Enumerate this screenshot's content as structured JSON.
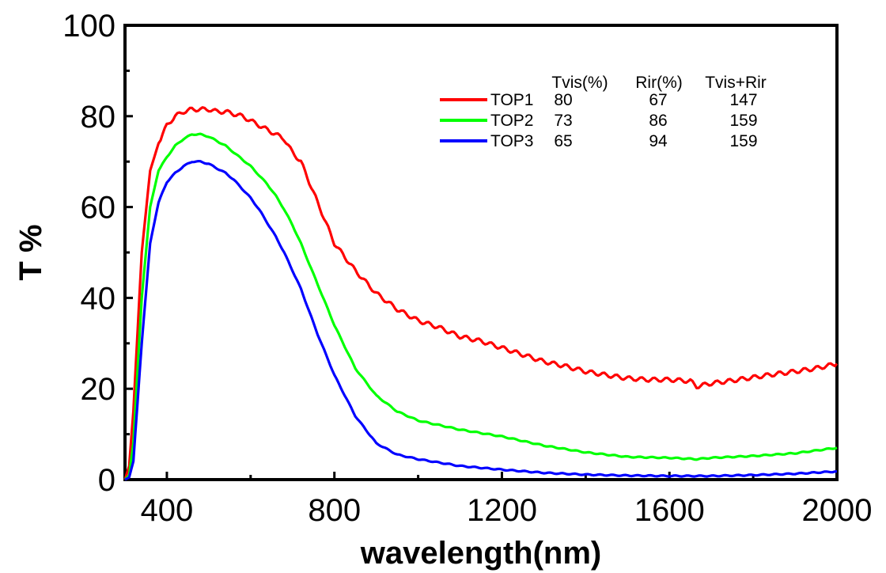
{
  "chart_data": {
    "type": "line",
    "xlabel": "wavelength(nm)",
    "ylabel": "T %",
    "xlim": [
      300,
      2000
    ],
    "ylim": [
      0,
      100
    ],
    "xticks": [
      400,
      800,
      1200,
      1600,
      2000
    ],
    "yticks": [
      0,
      20,
      40,
      60,
      80,
      100
    ],
    "grid": false,
    "legend_position": "top-right",
    "legend_columns": [
      "Tvis(%)",
      "Rir(%)",
      "Tvis+Rir"
    ],
    "series": [
      {
        "name": "TOP1",
        "color": "#ff0000",
        "table": [
          "80",
          "67",
          "147"
        ],
        "x": [
          300,
          310,
          320,
          340,
          360,
          380,
          400,
          420,
          440,
          460,
          480,
          500,
          520,
          540,
          560,
          580,
          600,
          620,
          640,
          660,
          680,
          700,
          720,
          760,
          800,
          850,
          900,
          950,
          1000,
          1050,
          1100,
          1150,
          1200,
          1250,
          1300,
          1350,
          1400,
          1450,
          1500,
          1550,
          1600,
          1650,
          1665,
          1700,
          1750,
          1800,
          1850,
          1900,
          1950,
          2000
        ],
        "y": [
          0,
          3,
          15,
          50,
          68,
          74,
          78,
          80,
          81,
          81.5,
          81.5,
          81.5,
          81,
          81,
          80.5,
          80,
          79,
          78,
          77,
          76,
          75,
          72,
          70,
          61,
          52,
          46,
          41,
          37.5,
          35,
          33.5,
          31.5,
          30.5,
          29,
          27.5,
          26,
          25,
          23.8,
          23,
          22.3,
          22,
          22,
          21.7,
          20.5,
          21.2,
          21.8,
          22.5,
          23.2,
          23.8,
          24.5,
          25.5
        ]
      },
      {
        "name": "TOP2",
        "color": "#00ff00",
        "table": [
          "73",
          "86",
          "159"
        ],
        "x": [
          300,
          310,
          320,
          340,
          360,
          380,
          400,
          420,
          440,
          460,
          480,
          500,
          520,
          540,
          560,
          580,
          600,
          620,
          640,
          660,
          680,
          700,
          720,
          760,
          800,
          850,
          900,
          950,
          1000,
          1100,
          1200,
          1300,
          1400,
          1500,
          1600,
          1665,
          1700,
          1800,
          1900,
          2000
        ],
        "y": [
          0,
          1,
          8,
          40,
          60,
          68,
          71,
          73.5,
          75,
          76,
          76,
          75.5,
          74.5,
          73.5,
          72,
          70.5,
          69,
          67,
          65,
          62.5,
          59.5,
          56,
          52,
          43,
          34,
          24.5,
          18.5,
          15,
          13,
          11,
          9.5,
          7.5,
          6,
          5,
          4.8,
          4.5,
          4.8,
          5.2,
          5.8,
          7
        ]
      },
      {
        "name": "TOP3",
        "color": "#0000ff",
        "table": [
          "65",
          "94",
          "159"
        ],
        "x": [
          300,
          310,
          320,
          340,
          360,
          380,
          400,
          420,
          440,
          460,
          480,
          500,
          520,
          540,
          560,
          580,
          600,
          620,
          640,
          660,
          680,
          700,
          720,
          760,
          800,
          850,
          900,
          950,
          1000,
          1100,
          1200,
          1300,
          1400,
          1500,
          1600,
          1700,
          1800,
          1900,
          2000
        ],
        "y": [
          0,
          0.5,
          4,
          30,
          52,
          61,
          65.5,
          67.5,
          69,
          70,
          70,
          69.5,
          68.5,
          67.5,
          66,
          64,
          62,
          59.5,
          56.5,
          53.5,
          50,
          46,
          42,
          32,
          23,
          14,
          8,
          5.5,
          4.5,
          3,
          2.2,
          1.5,
          1.1,
          0.9,
          0.8,
          0.8,
          1,
          1.3,
          1.8
        ]
      }
    ]
  }
}
